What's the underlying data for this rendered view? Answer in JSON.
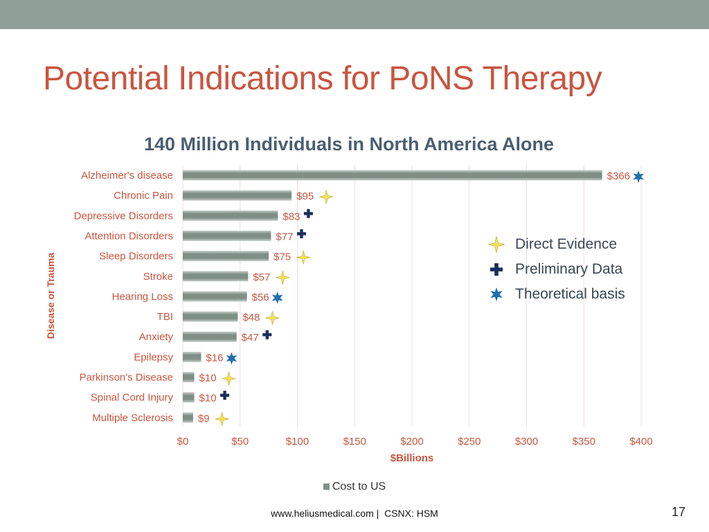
{
  "slide": {
    "title": "Potential Indications for PoNS Therapy",
    "page_number": "17",
    "footer": {
      "website": "www.heliusmedical.com",
      "separator": " |  ",
      "ticker": "CSNX: HSM"
    },
    "colors": {
      "top_bar": "#909f97",
      "title": "#c9553f",
      "chart_title": "#4a5e72",
      "category_labels": "#c9553f",
      "bar": "#7f8f86",
      "direct_evidence": "#f2e25c",
      "preliminary_data": "#1a2e5c",
      "theoretical_basis": "#1f6fad"
    }
  },
  "marker_legend": [
    {
      "key": "direct",
      "icon": "four-point-star-icon",
      "label": "Direct Evidence"
    },
    {
      "key": "preliminary",
      "icon": "cross-icon",
      "label": "Preliminary Data"
    },
    {
      "key": "theoretical",
      "icon": "six-point-star-icon",
      "label": "Theoretical basis"
    }
  ],
  "chart_data": {
    "type": "bar",
    "orientation": "horizontal",
    "title": "140 Million Individuals in North America Alone",
    "xlabel": "$Billions",
    "ylabel": "Disease or Trauma",
    "xlim": [
      0,
      400
    ],
    "x_ticks": [
      "$0",
      "$50",
      "$100",
      "$150",
      "$200",
      "$250",
      "$300",
      "$350",
      "$400"
    ],
    "grid": "vertical",
    "legend": "bottom",
    "categories": [
      "Alzheimer's disease",
      "Chronic Pain",
      "Depressive Disorders",
      "Attention Disorders",
      "Sleep Disorders",
      "Stroke",
      "Hearing Loss",
      "TBI",
      "Anxiety",
      "Epilepsy",
      "Parkinson's Disease",
      "Spinal Cord Injury",
      "Multiple Sclerosis"
    ],
    "series": [
      {
        "name": "Cost to US",
        "values": [
          366,
          95,
          83,
          77,
          75,
          57,
          56,
          48,
          47,
          16,
          10,
          10,
          9
        ],
        "data_labels": [
          "$366",
          "$95",
          "$83",
          "$77",
          "$75",
          "$57",
          "$56",
          "$48",
          "$47",
          "$16",
          "$10",
          "$10",
          "$9"
        ]
      }
    ],
    "evidence": [
      "theoretical",
      "direct",
      "preliminary",
      "preliminary",
      "direct",
      "direct",
      "theoretical",
      "direct",
      "preliminary",
      "theoretical",
      "direct",
      "preliminary",
      "direct"
    ]
  }
}
